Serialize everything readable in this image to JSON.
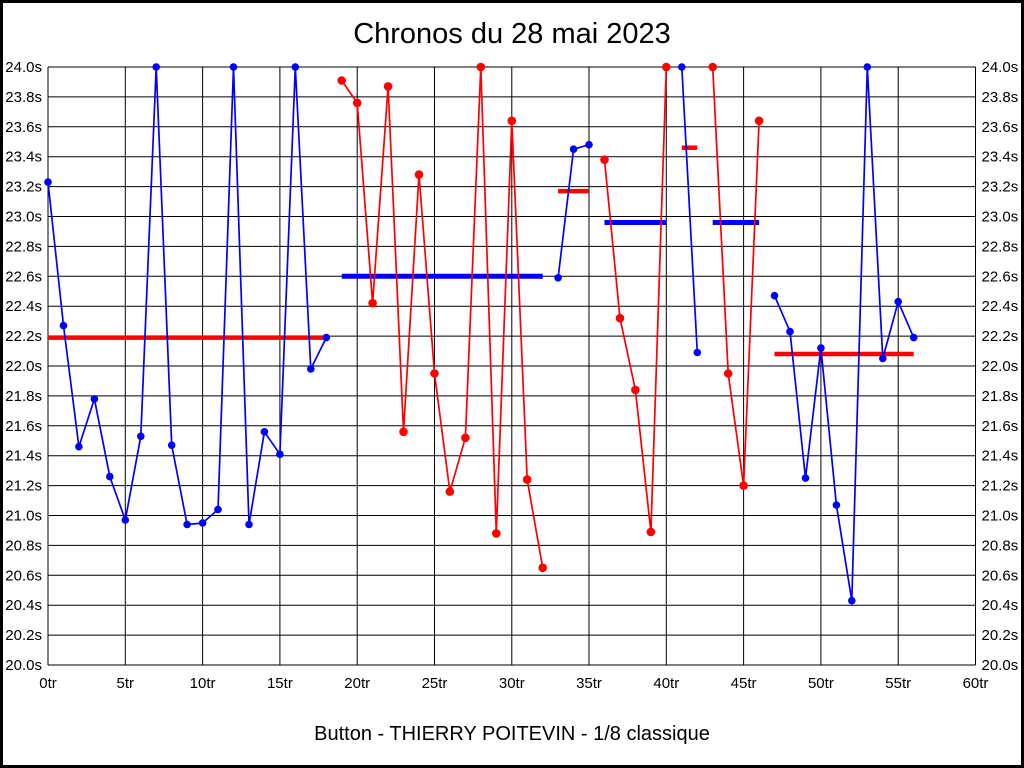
{
  "page": {
    "background": "#FFFFFF",
    "border_color": "#000000"
  },
  "chart_data": {
    "type": "line",
    "title": "Chronos du 28 mai 2023",
    "subtitle": "Button - THIERRY POITEVIN - 1/8 classique",
    "x_unit": "tr",
    "y_unit": "s",
    "xlim": [
      0,
      60
    ],
    "ylim": [
      20.0,
      24.0
    ],
    "x_tick_step": 5,
    "y_tick_step": 0.2,
    "grid": true,
    "x_tick_labels": [
      "0tr",
      "5tr",
      "10tr",
      "15tr",
      "20tr",
      "25tr",
      "30tr",
      "35tr",
      "40tr",
      "45tr",
      "50tr",
      "55tr",
      "60tr"
    ],
    "y_tick_labels_top_down": [
      "24.0s",
      "23.8s",
      "23.6s",
      "23.4s",
      "23.2s",
      "23.0s",
      "22.8s",
      "22.6s",
      "22.4s",
      "22.2s",
      "22.0s",
      "21.8s",
      "21.6s",
      "21.4s",
      "21.2s",
      "21.0s",
      "20.8s",
      "20.6s",
      "20.4s",
      "20.2s",
      "20.0s"
    ],
    "colors": {
      "blue_series": "#0000FF",
      "red_series": "#FF0000",
      "grid": "#000000",
      "text": "#000000"
    },
    "series": [
      {
        "name": "heat-1-blue",
        "color": "blue",
        "start_x": 0,
        "values": [
          23.23,
          22.27,
          21.46,
          21.78,
          21.26,
          20.97,
          21.53,
          24.0,
          21.47,
          20.94,
          20.95,
          21.04,
          24.0,
          20.94,
          21.56,
          21.41,
          24.0,
          21.98,
          22.19
        ]
      },
      {
        "name": "heat-2-red",
        "color": "red",
        "start_x": 19,
        "values": [
          23.91,
          23.76,
          22.42,
          23.87,
          21.56,
          23.28,
          21.95,
          21.16,
          21.52,
          24.0,
          20.88,
          23.64,
          21.24,
          20.65
        ]
      },
      {
        "name": "heat-3-blue",
        "color": "blue",
        "start_x": 33,
        "values": [
          22.59,
          23.45,
          23.48
        ]
      },
      {
        "name": "heat-4-red",
        "color": "red",
        "start_x": 36,
        "values": [
          23.38,
          22.32,
          21.84,
          20.89,
          24.0
        ]
      },
      {
        "name": "heat-5-blue",
        "color": "blue",
        "start_x": 41,
        "values": [
          24.0,
          22.09
        ]
      },
      {
        "name": "heat-6-red",
        "color": "red",
        "start_x": 43,
        "values": [
          24.0,
          21.95,
          21.2,
          23.64
        ]
      },
      {
        "name": "heat-7-blue",
        "color": "blue",
        "start_x": 47,
        "values": [
          22.47,
          22.23,
          21.25,
          22.12,
          21.07,
          20.43,
          24.0,
          22.05,
          22.43,
          22.19
        ]
      }
    ],
    "average_lines": [
      {
        "color": "red",
        "value": 22.19,
        "x_from": 0,
        "x_to": 18
      },
      {
        "color": "blue",
        "value": 22.6,
        "x_from": 19,
        "x_to": 32
      },
      {
        "color": "red",
        "value": 23.17,
        "x_from": 33,
        "x_to": 35
      },
      {
        "color": "blue",
        "value": 22.96,
        "x_from": 36,
        "x_to": 40
      },
      {
        "color": "red",
        "value": 23.46,
        "x_from": 41,
        "x_to": 42
      },
      {
        "color": "blue",
        "value": 22.96,
        "x_from": 43,
        "x_to": 46
      },
      {
        "color": "red",
        "value": 22.08,
        "x_from": 47,
        "x_to": 56
      }
    ]
  }
}
